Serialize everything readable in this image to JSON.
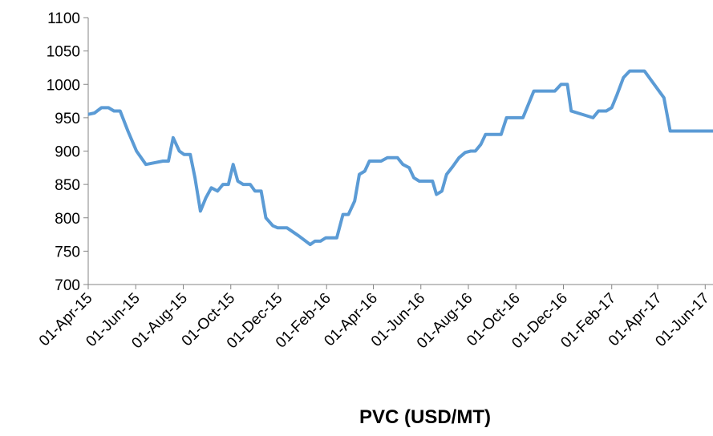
{
  "chart_data": {
    "type": "line",
    "title": "PVC (USD/MT)",
    "x": [
      "2015-04-01",
      "2015-04-09",
      "2015-04-18",
      "2015-04-27",
      "2015-05-04",
      "2015-05-12",
      "2015-05-22",
      "2015-06-02",
      "2015-06-14",
      "2015-06-27",
      "2015-07-06",
      "2015-07-13",
      "2015-07-19",
      "2015-07-27",
      "2015-08-02",
      "2015-08-10",
      "2015-08-16",
      "2015-08-23",
      "2015-08-30",
      "2015-09-06",
      "2015-09-14",
      "2015-09-21",
      "2015-09-28",
      "2015-10-04",
      "2015-10-10",
      "2015-10-17",
      "2015-10-26",
      "2015-11-01",
      "2015-11-09",
      "2015-11-15",
      "2015-11-24",
      "2015-11-30",
      "2015-12-12",
      "2015-12-27",
      "2016-01-11",
      "2016-01-17",
      "2016-01-24",
      "2016-01-31",
      "2016-02-14",
      "2016-02-22",
      "2016-02-29",
      "2016-03-08",
      "2016-03-14",
      "2016-03-21",
      "2016-03-27",
      "2016-04-11",
      "2016-04-19",
      "2016-05-02",
      "2016-05-09",
      "2016-05-17",
      "2016-05-23",
      "2016-05-30",
      "2016-06-16",
      "2016-06-21",
      "2016-06-28",
      "2016-07-04",
      "2016-07-12",
      "2016-07-20",
      "2016-07-28",
      "2016-08-04",
      "2016-08-10",
      "2016-08-17",
      "2016-08-23",
      "2016-09-12",
      "2016-09-19",
      "2016-10-10",
      "2016-10-24",
      "2016-11-20",
      "2016-11-28",
      "2016-12-06",
      "2016-12-11",
      "2017-01-08",
      "2017-01-15",
      "2017-01-25",
      "2017-02-01",
      "2017-02-08",
      "2017-02-16",
      "2017-02-24",
      "2017-03-15",
      "2017-04-09",
      "2017-04-17",
      "2017-06-11"
    ],
    "series": [
      {
        "name": "PVC",
        "color": "#5b9bd5",
        "values": [
          955,
          957,
          965,
          965,
          960,
          960,
          930,
          900,
          880,
          883,
          885,
          885,
          920,
          900,
          895,
          895,
          860,
          810,
          830,
          845,
          840,
          850,
          850,
          880,
          855,
          850,
          850,
          840,
          840,
          800,
          788,
          785,
          785,
          773,
          760,
          765,
          765,
          770,
          770,
          805,
          805,
          825,
          865,
          870,
          885,
          885,
          890,
          890,
          880,
          875,
          860,
          855,
          855,
          835,
          840,
          865,
          877,
          890,
          898,
          900,
          900,
          910,
          925,
          925,
          950,
          950,
          990,
          990,
          1000,
          1000,
          960,
          950,
          960,
          960,
          965,
          985,
          1010,
          1020,
          1020,
          980,
          930,
          930
        ]
      }
    ],
    "xlim": [
      "2015-04-01",
      "2017-06-11"
    ],
    "xticks": [
      {
        "value": "2015-04-01",
        "label": "01-Apr-15"
      },
      {
        "value": "2015-06-01",
        "label": "01-Jun-15"
      },
      {
        "value": "2015-08-01",
        "label": "01-Aug-15"
      },
      {
        "value": "2015-10-01",
        "label": "01-Oct-15"
      },
      {
        "value": "2015-12-01",
        "label": "01-Dec-15"
      },
      {
        "value": "2016-02-01",
        "label": "01-Feb-16"
      },
      {
        "value": "2016-04-01",
        "label": "01-Apr-16"
      },
      {
        "value": "2016-06-01",
        "label": "01-Jun-16"
      },
      {
        "value": "2016-08-01",
        "label": "01-Aug-16"
      },
      {
        "value": "2016-10-01",
        "label": "01-Oct-16"
      },
      {
        "value": "2016-12-01",
        "label": "01-Dec-16"
      },
      {
        "value": "2017-02-01",
        "label": "01-Feb-17"
      },
      {
        "value": "2017-04-01",
        "label": "01-Apr-17"
      },
      {
        "value": "2017-06-01",
        "label": "01-Jun-17"
      }
    ],
    "ylim": [
      700,
      1100
    ],
    "yticks": [
      700,
      750,
      800,
      850,
      900,
      950,
      1000,
      1050,
      1100
    ]
  }
}
